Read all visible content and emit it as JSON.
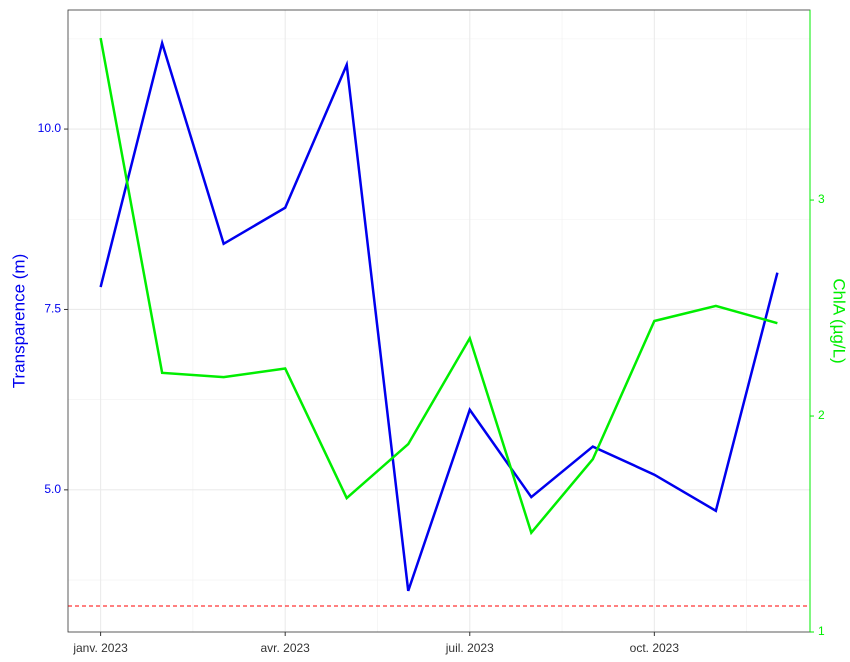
{
  "chart_data": {
    "type": "line",
    "x": [
      "2023-01",
      "2023-02",
      "2023-03",
      "2023-04",
      "2023-05",
      "2023-06",
      "2023-07",
      "2023-08",
      "2023-09",
      "2023-10",
      "2023-11",
      "2023-12"
    ],
    "xticks": [
      {
        "value": "2023-01",
        "label": "janv. 2023"
      },
      {
        "value": "2023-04",
        "label": "avr. 2023"
      },
      {
        "value": "2023-07",
        "label": "juil. 2023"
      },
      {
        "value": "2023-10",
        "label": "oct. 2023"
      }
    ],
    "y_label": "Transparence (m)",
    "y2_label": "ChlA (µg/L)",
    "ylim": [
      3.03,
      11.65
    ],
    "yticks": [
      {
        "value": 5,
        "label": "5.0"
      },
      {
        "value": 7.5,
        "label": "7.5"
      },
      {
        "value": 10,
        "label": "10.0"
      }
    ],
    "y2lim": [
      1,
      3.88
    ],
    "y2ticks": [
      1,
      2,
      3
    ],
    "grid": true,
    "series": [
      {
        "name": "Transparence",
        "color": "#0000ee",
        "values": [
          7.81,
          11.19,
          8.41,
          8.91,
          10.89,
          3.6,
          6.11,
          4.9,
          5.6,
          5.21,
          4.71,
          8.01
        ]
      },
      {
        "name": "ChlA",
        "color": "#00ee00",
        "axis": "y2",
        "values": [
          3.75,
          2.2,
          2.18,
          2.22,
          1.62,
          1.87,
          2.36,
          1.46,
          1.8,
          2.44,
          2.51,
          2.43
        ]
      }
    ],
    "reference_line": {
      "value": 3.39,
      "color": "#ff0000"
    }
  }
}
